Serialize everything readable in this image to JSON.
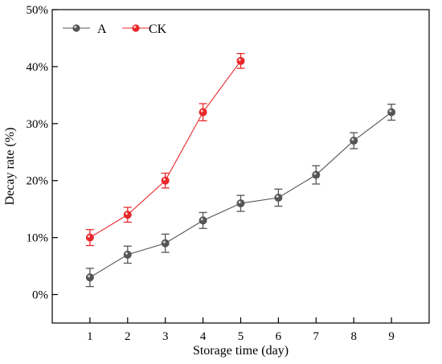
{
  "chart_data": {
    "type": "line",
    "xlabel": "Storage time (day)",
    "ylabel": "Decay rate (%)",
    "x": [
      1,
      2,
      3,
      4,
      5,
      6,
      7,
      8,
      9
    ],
    "xlim": [
      0,
      10
    ],
    "ylim": [
      -5,
      50
    ],
    "yticks": [
      0,
      10,
      20,
      30,
      40,
      50
    ],
    "ytick_labels": [
      "0%",
      "10%",
      "20%",
      "30%",
      "40%",
      "50%"
    ],
    "xtick_labels": [
      "1",
      "2",
      "3",
      "4",
      "5",
      "6",
      "7",
      "8",
      "9"
    ],
    "legend_position": "top-left",
    "grid": false,
    "series": [
      {
        "name": "A",
        "color": "#555555",
        "x": [
          1,
          2,
          3,
          4,
          5,
          6,
          7,
          8,
          9
        ],
        "values": [
          3,
          7,
          9,
          13,
          16,
          17,
          21,
          27,
          32
        ],
        "errors": [
          1.6,
          1.5,
          1.6,
          1.4,
          1.4,
          1.5,
          1.6,
          1.4,
          1.4
        ]
      },
      {
        "name": "CK",
        "color": "#e8282b",
        "x": [
          1,
          2,
          3,
          4,
          5
        ],
        "values": [
          10,
          14,
          20,
          32,
          41
        ],
        "errors": [
          1.4,
          1.3,
          1.3,
          1.5,
          1.3
        ]
      }
    ]
  }
}
